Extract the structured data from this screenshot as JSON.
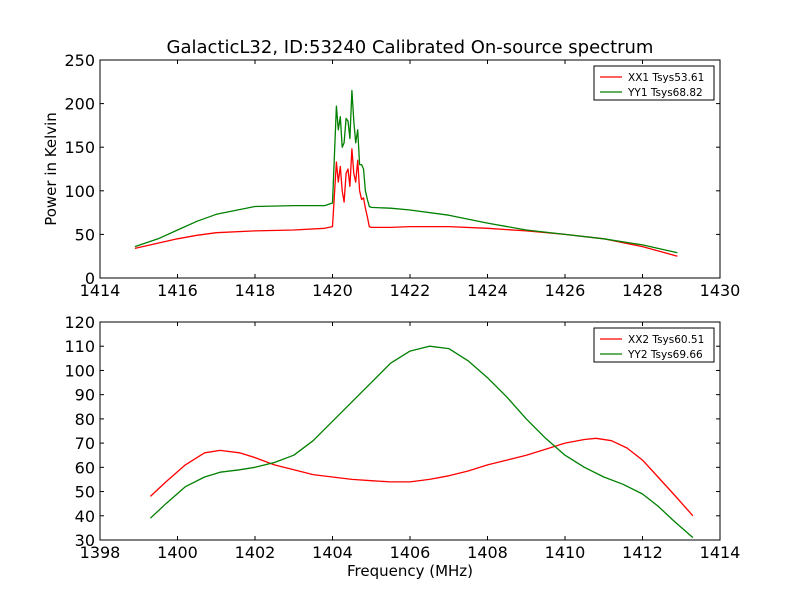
{
  "figure_title": "GalacticL32, ID:53240 Calibrated On-source spectrum",
  "chart_data": [
    {
      "type": "line",
      "title": "GalacticL32, ID:53240 Calibrated On-source spectrum",
      "xlabel": "",
      "ylabel": "Power in Kelvin",
      "xlim": [
        1414,
        1430
      ],
      "ylim": [
        0,
        250
      ],
      "xticks": [
        1414,
        1416,
        1418,
        1420,
        1422,
        1424,
        1426,
        1428,
        1430
      ],
      "yticks": [
        0,
        50,
        100,
        150,
        200,
        250
      ],
      "grid": false,
      "legend_position": "top-right",
      "series": [
        {
          "name": "XX1 Tsys53.61",
          "color": "#ff0000",
          "x": [
            1414.9,
            1415.5,
            1416.0,
            1416.5,
            1417.0,
            1418.0,
            1419.0,
            1419.8,
            1420.0,
            1420.05,
            1420.1,
            1420.15,
            1420.2,
            1420.25,
            1420.3,
            1420.35,
            1420.4,
            1420.45,
            1420.5,
            1420.55,
            1420.6,
            1420.65,
            1420.7,
            1420.75,
            1420.8,
            1420.85,
            1420.9,
            1420.95,
            1421.0,
            1421.5,
            1422.0,
            1423.0,
            1424.0,
            1425.0,
            1426.0,
            1427.0,
            1428.0,
            1428.9
          ],
          "y": [
            34,
            40,
            45,
            49,
            52,
            54,
            55,
            57,
            59,
            95,
            133,
            110,
            128,
            100,
            87,
            120,
            125,
            105,
            148,
            120,
            110,
            135,
            100,
            90,
            92,
            80,
            70,
            59,
            58,
            58,
            59,
            59,
            57,
            54,
            50,
            45,
            36,
            25
          ]
        },
        {
          "name": "YY1 Tsys68.82",
          "color": "#008000",
          "x": [
            1414.9,
            1415.5,
            1416.0,
            1416.5,
            1417.0,
            1418.0,
            1419.0,
            1419.8,
            1420.0,
            1420.05,
            1420.1,
            1420.15,
            1420.2,
            1420.25,
            1420.3,
            1420.35,
            1420.4,
            1420.45,
            1420.5,
            1420.55,
            1420.6,
            1420.65,
            1420.7,
            1420.75,
            1420.8,
            1420.85,
            1420.9,
            1420.95,
            1421.0,
            1421.5,
            1422.0,
            1423.0,
            1424.0,
            1425.0,
            1426.0,
            1427.0,
            1428.0,
            1428.9
          ],
          "y": [
            36,
            45,
            55,
            65,
            73,
            82,
            83,
            83,
            86,
            140,
            197,
            170,
            185,
            150,
            155,
            183,
            180,
            160,
            215,
            180,
            155,
            170,
            130,
            130,
            125,
            100,
            90,
            82,
            81,
            80,
            78,
            72,
            63,
            55,
            50,
            45,
            38,
            29
          ]
        }
      ]
    },
    {
      "type": "line",
      "title": "",
      "xlabel": "Frequency (MHz)",
      "ylabel": "",
      "xlim": [
        1398,
        1414
      ],
      "ylim": [
        30,
        120
      ],
      "xticks": [
        1398,
        1400,
        1402,
        1404,
        1406,
        1408,
        1410,
        1412,
        1414
      ],
      "yticks": [
        30,
        40,
        50,
        60,
        70,
        80,
        90,
        100,
        110,
        120
      ],
      "grid": false,
      "legend_position": "top-right",
      "series": [
        {
          "name": "XX2 Tsys60.51",
          "color": "#ff0000",
          "x": [
            1399.3,
            1399.7,
            1400.2,
            1400.7,
            1401.1,
            1401.6,
            1402.0,
            1402.5,
            1403.0,
            1403.5,
            1404.0,
            1404.5,
            1405.0,
            1405.5,
            1406.0,
            1406.5,
            1407.0,
            1407.5,
            1408.0,
            1408.5,
            1409.0,
            1409.5,
            1410.0,
            1410.5,
            1410.8,
            1411.2,
            1411.6,
            1412.0,
            1412.4,
            1412.8,
            1413.3
          ],
          "y": [
            48,
            54,
            61,
            66,
            67,
            66,
            64,
            61,
            59,
            57,
            56,
            55,
            54.5,
            54,
            54,
            55,
            56.5,
            58.5,
            61,
            63,
            65,
            67.5,
            70,
            71.5,
            72,
            71,
            68,
            63,
            56,
            49,
            40
          ]
        },
        {
          "name": "YY2 Tsys69.66",
          "color": "#008000",
          "x": [
            1399.3,
            1399.7,
            1400.2,
            1400.7,
            1401.1,
            1401.6,
            1402.0,
            1402.5,
            1403.0,
            1403.5,
            1404.0,
            1404.5,
            1405.0,
            1405.5,
            1406.0,
            1406.5,
            1407.0,
            1407.5,
            1408.0,
            1408.5,
            1409.0,
            1409.5,
            1410.0,
            1410.5,
            1411.0,
            1411.5,
            1412.0,
            1412.4,
            1412.8,
            1413.3
          ],
          "y": [
            39,
            45,
            52,
            56,
            58,
            59,
            60,
            62,
            65,
            71,
            79,
            87,
            95,
            103,
            108,
            110,
            109,
            104,
            97,
            89,
            80,
            72,
            65,
            60,
            56,
            53,
            49,
            44,
            38,
            31
          ]
        }
      ]
    }
  ]
}
